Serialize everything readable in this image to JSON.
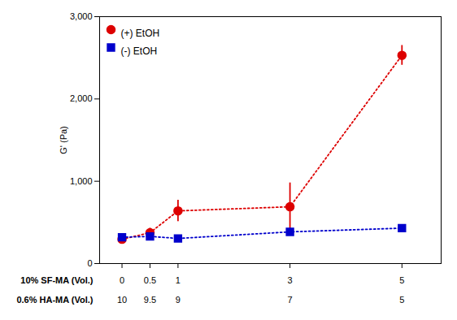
{
  "chart_data": {
    "type": "line",
    "x": [
      0,
      0.5,
      1,
      3,
      5
    ],
    "xlim": [
      -0.4,
      5.7
    ],
    "xticks": [
      0,
      0.5,
      1,
      3,
      5
    ],
    "ylim": [
      0,
      3000
    ],
    "yticks": [
      0,
      1000,
      2000,
      3000
    ],
    "ylabel": "G' (Pa)",
    "tick_labels": "y",
    "grid": false,
    "legend": "upper left",
    "series": [
      {
        "name": "(+) EtOH",
        "color": "#dd0000",
        "values": [
          295,
          375,
          640,
          690,
          2530
        ],
        "errors": [
          25,
          55,
          130,
          290,
          120
        ],
        "marker": "circle",
        "line_style": "dotted"
      },
      {
        "name": "(-) EtOH",
        "color": "#0000cc",
        "values": [
          320,
          330,
          305,
          385,
          430
        ],
        "errors": [
          35,
          45,
          35,
          40,
          18
        ],
        "marker": "square",
        "line_style": "dotted"
      }
    ],
    "table": [
      {
        "label": "10% SF-MA (Vol.)",
        "values": [
          "0",
          "0.5",
          "1",
          "3",
          "5"
        ]
      },
      {
        "label": "0.6% HA-MA (Vol.)",
        "values": [
          "10",
          "9.5",
          "9",
          "7",
          "5"
        ]
      }
    ]
  }
}
